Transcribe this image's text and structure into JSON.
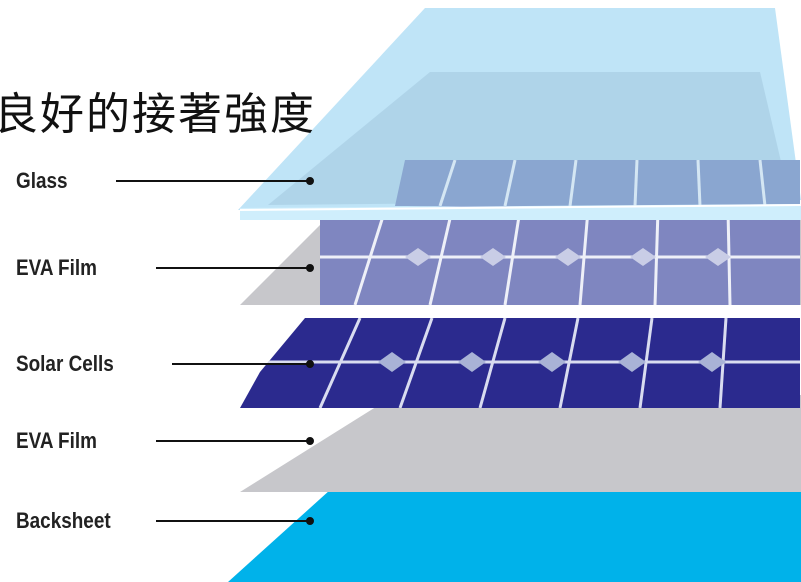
{
  "heading": "良好的接著強度",
  "layers": [
    {
      "label": "Glass",
      "color": "#bfe4f7"
    },
    {
      "label": "EVA Film",
      "color": "#c7c7cb"
    },
    {
      "label": "Solar Cells",
      "color": "#2b2a8e"
    },
    {
      "label": "EVA Film",
      "color": "#c7c7cb"
    },
    {
      "label": "Backsheet",
      "color": "#00b2ea"
    }
  ],
  "colors": {
    "glass": "#bfe4f7",
    "eva": "#c7c7cb",
    "cell": "#2b2a8e",
    "backsheet": "#00b2ea",
    "leader": "#111111"
  }
}
